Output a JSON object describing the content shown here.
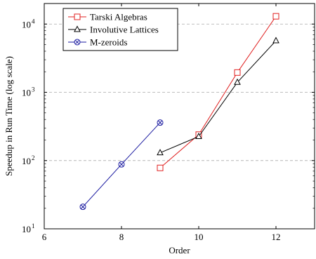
{
  "chart_data": {
    "type": "line",
    "xlabel": "Order",
    "ylabel": "Speedup in Run Time (log scale)",
    "x_scale": "linear",
    "y_scale": "log10",
    "xlim": [
      6,
      13
    ],
    "ylim": [
      10,
      20000
    ],
    "x_ticks": [
      6,
      8,
      10,
      12
    ],
    "y_ticks": [
      {
        "value": 10,
        "base": "10",
        "exp": "1"
      },
      {
        "value": 100,
        "base": "10",
        "exp": "2"
      },
      {
        "value": 1000,
        "base": "10",
        "exp": "3"
      },
      {
        "value": 10000,
        "base": "10",
        "exp": "4"
      }
    ],
    "grid": "horizontal-dashed",
    "legend_position": "top-left",
    "series": [
      {
        "name": "Tarski Algebras",
        "color": "#e02020",
        "marker": "square",
        "x": [
          9,
          10,
          11,
          12
        ],
        "y": [
          78,
          240,
          1950,
          13000
        ]
      },
      {
        "name": "Involutive Lattices",
        "color": "#000000",
        "marker": "triangle",
        "x": [
          9,
          10,
          11,
          12
        ],
        "y": [
          130,
          225,
          1400,
          5700
        ]
      },
      {
        "name": "M-zeroids",
        "color": "#1a1aa0",
        "marker": "circle-x",
        "x": [
          7,
          8,
          9
        ],
        "y": [
          21,
          88,
          360
        ]
      }
    ]
  }
}
